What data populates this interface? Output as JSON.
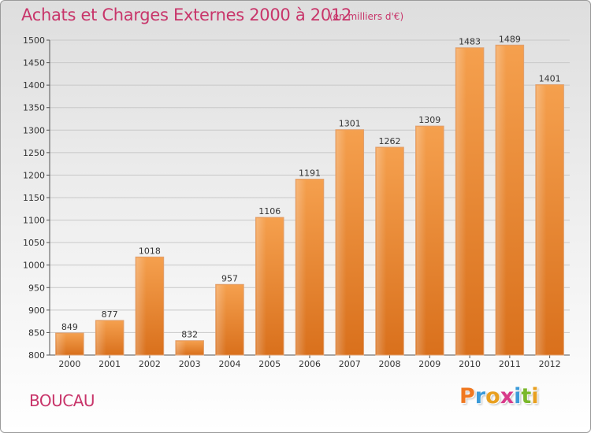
{
  "header": {
    "title": "Achats et Charges Externes 2000 à 2012",
    "subtitle": "(en milliers d'€)"
  },
  "footer": {
    "commune": "BOUCAU",
    "logo": [
      "P",
      "r",
      "o",
      "x",
      "i",
      "t",
      "i"
    ],
    "logo_colors": [
      "#f07820",
      "#3a9ad9",
      "#e8a020",
      "#d83a8a",
      "#3a9ad9",
      "#7ab82a",
      "#e8a020"
    ]
  },
  "chart_data": {
    "type": "bar",
    "categories": [
      "2000",
      "2001",
      "2002",
      "2003",
      "2004",
      "2005",
      "2006",
      "2007",
      "2008",
      "2009",
      "2010",
      "2011",
      "2012"
    ],
    "values": [
      849,
      877,
      1018,
      832,
      957,
      1106,
      1191,
      1301,
      1262,
      1309,
      1483,
      1489,
      1401
    ],
    "value_labels": [
      "849",
      "877",
      "1018",
      "832",
      "957",
      "1106",
      "1191",
      "1301",
      "1262",
      "1309",
      "1483",
      "1489",
      "1401"
    ],
    "yticks": [
      800,
      850,
      900,
      950,
      1000,
      1050,
      1100,
      1150,
      1200,
      1250,
      1300,
      1350,
      1400,
      1450,
      1500
    ],
    "ytick_labels": [
      "800",
      "850",
      "900",
      "950",
      "1000",
      "1050",
      "1100",
      "1150",
      "1200",
      "1250",
      "1300",
      "1350",
      "1400",
      "1450",
      "1500"
    ],
    "ylim": [
      800,
      1500
    ],
    "grid": true,
    "bar_color": "#f0913a",
    "bar_color_dark": "#d9701c",
    "grid_color": "#c8c8c8"
  }
}
